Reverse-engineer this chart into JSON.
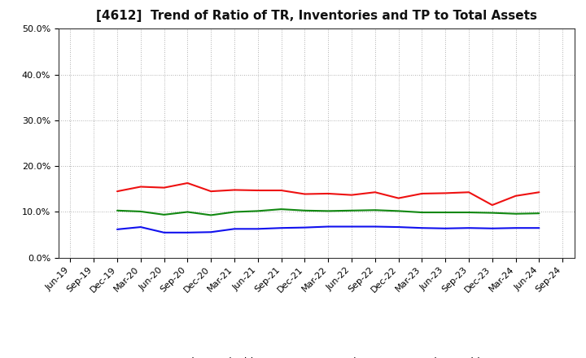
{
  "title": "[4612]  Trend of Ratio of TR, Inventories and TP to Total Assets",
  "x_labels": [
    "Jun-19",
    "Sep-19",
    "Dec-19",
    "Mar-20",
    "Jun-20",
    "Sep-20",
    "Dec-20",
    "Mar-21",
    "Jun-21",
    "Sep-21",
    "Dec-21",
    "Mar-22",
    "Jun-22",
    "Sep-22",
    "Dec-22",
    "Mar-23",
    "Jun-23",
    "Sep-23",
    "Dec-23",
    "Mar-24",
    "Jun-24",
    "Sep-24"
  ],
  "trade_receivables": [
    null,
    null,
    14.5,
    15.5,
    15.3,
    16.3,
    14.5,
    14.8,
    14.7,
    14.7,
    13.9,
    14.0,
    13.7,
    14.3,
    13.0,
    14.0,
    14.1,
    14.3,
    11.5,
    13.5,
    14.3,
    null
  ],
  "inventories": [
    null,
    null,
    6.2,
    6.7,
    5.5,
    5.5,
    5.6,
    6.3,
    6.3,
    6.5,
    6.6,
    6.8,
    6.8,
    6.8,
    6.7,
    6.5,
    6.4,
    6.5,
    6.4,
    6.5,
    6.5,
    null
  ],
  "trade_payables": [
    null,
    null,
    10.3,
    10.1,
    9.4,
    10.0,
    9.3,
    10.0,
    10.2,
    10.6,
    10.3,
    10.2,
    10.3,
    10.4,
    10.2,
    9.9,
    9.9,
    9.9,
    9.8,
    9.6,
    9.7,
    null
  ],
  "tr_color": "#ee1111",
  "inv_color": "#1111ee",
  "tp_color": "#118811",
  "ylim": [
    0,
    50
  ],
  "yticks": [
    0,
    10,
    20,
    30,
    40,
    50
  ],
  "background_color": "#ffffff",
  "plot_bg_color": "#ffffff",
  "grid_color": "#999999",
  "title_fontsize": 11,
  "tick_fontsize": 8,
  "legend_fontsize": 9
}
